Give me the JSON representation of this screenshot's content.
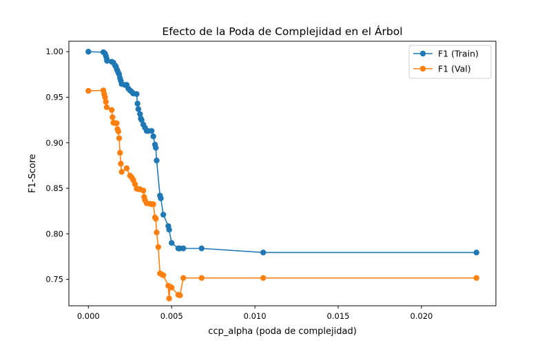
{
  "chart_data": {
    "type": "line",
    "title": "Efecto de la Poda de Complejidad en el Árbol",
    "xlabel": "ccp_alpha (poda de complejidad)",
    "ylabel": "F1-Score",
    "xlim": [
      -0.00117,
      0.02447
    ],
    "ylim": [
      0.721,
      1.0115
    ],
    "x_ticks": [
      0.0,
      0.005,
      0.01,
      0.015,
      0.02
    ],
    "x_tick_labels": [
      "0.000",
      "0.005",
      "0.010",
      "0.015",
      "0.020"
    ],
    "y_ticks": [
      0.75,
      0.8,
      0.85,
      0.9,
      0.95,
      1.0
    ],
    "y_tick_labels": [
      "0.75",
      "0.80",
      "0.85",
      "0.90",
      "0.95",
      "1.00"
    ],
    "grid": false,
    "legend_position": "top-right",
    "series": [
      {
        "name": "F1 (Train)",
        "color": "#1f77b4",
        "points": [
          [
            0.0,
            1.0
          ],
          [
            0.0009,
            0.9995
          ],
          [
            0.001,
            0.998
          ],
          [
            0.00105,
            0.9955
          ],
          [
            0.0011,
            0.9925
          ],
          [
            0.00112,
            0.99
          ],
          [
            0.0014,
            0.989
          ],
          [
            0.0015,
            0.988
          ],
          [
            0.0016,
            0.985
          ],
          [
            0.00165,
            0.984
          ],
          [
            0.0017,
            0.981
          ],
          [
            0.00175,
            0.979
          ],
          [
            0.0018,
            0.977
          ],
          [
            0.00185,
            0.975
          ],
          [
            0.0019,
            0.971
          ],
          [
            0.00195,
            0.968
          ],
          [
            0.002,
            0.9645
          ],
          [
            0.0022,
            0.9635
          ],
          [
            0.0023,
            0.9635
          ],
          [
            0.0024,
            0.9595
          ],
          [
            0.0025,
            0.9575
          ],
          [
            0.0026,
            0.956
          ],
          [
            0.0027,
            0.954
          ],
          [
            0.0029,
            0.9535
          ],
          [
            0.00295,
            0.943
          ],
          [
            0.003,
            0.937
          ],
          [
            0.0031,
            0.9315
          ],
          [
            0.00315,
            0.9265
          ],
          [
            0.0032,
            0.925
          ],
          [
            0.0033,
            0.92
          ],
          [
            0.0034,
            0.9165
          ],
          [
            0.0035,
            0.913
          ],
          [
            0.0036,
            0.913
          ],
          [
            0.0038,
            0.913
          ],
          [
            0.0039,
            0.907
          ],
          [
            0.004,
            0.898
          ],
          [
            0.00405,
            0.8945
          ],
          [
            0.0041,
            0.8805
          ],
          [
            0.0043,
            0.842
          ],
          [
            0.00435,
            0.839
          ],
          [
            0.0045,
            0.821
          ],
          [
            0.0048,
            0.8085
          ],
          [
            0.00485,
            0.8045
          ],
          [
            0.005,
            0.79
          ],
          [
            0.0054,
            0.784
          ],
          [
            0.0055,
            0.784
          ],
          [
            0.0057,
            0.784
          ],
          [
            0.0068,
            0.784
          ],
          [
            0.0105,
            0.7795
          ],
          [
            0.0233,
            0.7795
          ]
        ]
      },
      {
        "name": "F1 (Val)",
        "color": "#ff7f0e",
        "points": [
          [
            0.0,
            0.957
          ],
          [
            0.0009,
            0.9575
          ],
          [
            0.00095,
            0.9535
          ],
          [
            0.001,
            0.95
          ],
          [
            0.00105,
            0.945
          ],
          [
            0.0011,
            0.939
          ],
          [
            0.0014,
            0.936
          ],
          [
            0.00145,
            0.928
          ],
          [
            0.0015,
            0.922
          ],
          [
            0.0016,
            0.9215
          ],
          [
            0.0017,
            0.9215
          ],
          [
            0.00175,
            0.915
          ],
          [
            0.0018,
            0.9125
          ],
          [
            0.00185,
            0.905
          ],
          [
            0.0019,
            0.889
          ],
          [
            0.00195,
            0.877
          ],
          [
            0.002,
            0.868
          ],
          [
            0.0023,
            0.872
          ],
          [
            0.0025,
            0.864
          ],
          [
            0.0026,
            0.862
          ],
          [
            0.0027,
            0.859
          ],
          [
            0.0028,
            0.8545
          ],
          [
            0.0029,
            0.8495
          ],
          [
            0.003,
            0.849
          ],
          [
            0.0031,
            0.849
          ],
          [
            0.0033,
            0.8475
          ],
          [
            0.00335,
            0.8405
          ],
          [
            0.0034,
            0.837
          ],
          [
            0.0035,
            0.8335
          ],
          [
            0.0037,
            0.833
          ],
          [
            0.0038,
            0.8325
          ],
          [
            0.0039,
            0.8325
          ],
          [
            0.004,
            0.818
          ],
          [
            0.00405,
            0.8165
          ],
          [
            0.0041,
            0.8015
          ],
          [
            0.0042,
            0.7855
          ],
          [
            0.0043,
            0.7565
          ],
          [
            0.0044,
            0.7555
          ],
          [
            0.0045,
            0.7545
          ],
          [
            0.0048,
            0.743
          ],
          [
            0.00485,
            0.729
          ],
          [
            0.0049,
            0.742
          ],
          [
            0.005,
            0.741
          ],
          [
            0.0054,
            0.733
          ],
          [
            0.0055,
            0.7325
          ],
          [
            0.0057,
            0.7515
          ],
          [
            0.0068,
            0.7515
          ],
          [
            0.0105,
            0.7515
          ],
          [
            0.0233,
            0.7515
          ]
        ]
      }
    ]
  }
}
